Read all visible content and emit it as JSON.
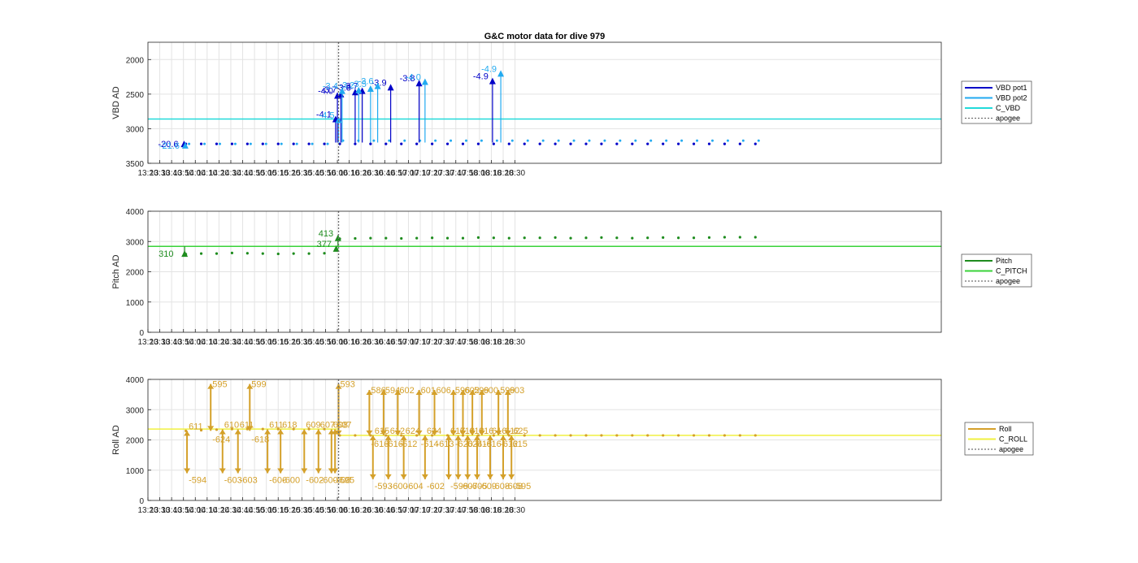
{
  "title": "G&C motor data for dive 979",
  "colors": {
    "vbd_pot1": "#0000c8",
    "vbd_pot2": "#22aaf0",
    "c_vbd": "#22dada",
    "pitch": "#1e8c1e",
    "c_pitch": "#39d339",
    "roll": "#d4a02a",
    "c_roll": "#f0f040",
    "apogee": "#707070",
    "grid": "#e3e3e3",
    "axis": "#262626"
  },
  "chart_data": [
    {
      "type": "line",
      "name": "vbd",
      "title": "G&C motor data for dive 979",
      "ylabel": "VBD AD",
      "ylim": [
        3500,
        1750
      ],
      "yreverse": true,
      "yticks": [
        2000,
        2500,
        3000,
        3500
      ],
      "xlim": [
        800,
        1470
      ],
      "xticks": [
        800,
        810,
        820,
        830,
        840,
        850,
        860,
        870,
        880,
        890,
        900,
        910,
        920,
        930,
        940,
        950,
        960,
        970,
        980,
        990,
        1000,
        1010,
        1020,
        1030,
        1040,
        1050,
        1060,
        1070,
        1080,
        1090,
        1100,
        1110
      ],
      "xticklabels": [
        "13:20",
        "13:30",
        "13:40",
        "13:50",
        "14:00",
        "14:10",
        "14:20",
        "14:30",
        "14:40",
        "14:50",
        "15:00",
        "15:10",
        "15:20",
        "15:30",
        "15:40",
        "15:50",
        "16:00",
        "16:10",
        "16:20",
        "16:30",
        "16:40",
        "16:50",
        "17:00",
        "17:10",
        "17:20",
        "17:30",
        "17:40",
        "17:50",
        "18:00",
        "18:10",
        "18:20",
        "18:30"
      ],
      "grid": true,
      "legend_position": "right",
      "legend": [
        "VBD pot1",
        "VBD pot2",
        "C_VBD",
        "apogee"
      ],
      "apogee_x": 961,
      "reference": {
        "name": "C_VBD",
        "value": 2860
      },
      "series": [
        {
          "name": "VBD pot1",
          "x": [
            832,
            845,
            858,
            871,
            884,
            897,
            910,
            923,
            936,
            949,
            962,
            975,
            988,
            1001,
            1014,
            1027,
            1040,
            1053,
            1066,
            1079,
            1092,
            1105,
            1118,
            1131,
            1144,
            1157,
            1170,
            1183,
            1196,
            1209,
            1222,
            1235,
            1248,
            1261,
            1274,
            1287,
            1300,
            1313
          ],
          "y": [
            3220,
            3220,
            3220,
            3220,
            3220,
            3220,
            3220,
            3220,
            3220,
            3220,
            3220,
            3220,
            3220,
            3220,
            3220,
            3220,
            3220,
            3220,
            3220,
            3220,
            3220,
            3220,
            3220,
            3220,
            3220,
            3220,
            3220,
            3220,
            3220,
            3220,
            3220,
            3220,
            3220,
            3220,
            3220,
            3220,
            3220,
            3220
          ]
        }
      ],
      "markers": [
        {
          "series": "VBD pot1",
          "points": [
            {
              "x": 830.5,
              "y": 3220,
              "label": "-20.6"
            },
            {
              "x": 958.5,
              "y": 2860,
              "label": "-4.1"
            },
            {
              "x": 960,
              "y": 2520,
              "label": "-4.0"
            },
            {
              "x": 963,
              "y": 2500,
              "label": "-3.7"
            },
            {
              "x": 975,
              "y": 2470,
              "label": "-3.8"
            },
            {
              "x": 981,
              "y": 2450,
              "label": "-3.7"
            },
            {
              "x": 1005,
              "y": 2400,
              "label": "-3.9"
            },
            {
              "x": 1029,
              "y": 2340,
              "label": "-3.8"
            },
            {
              "x": 1091,
              "y": 2310,
              "label": "-4.9"
            }
          ]
        },
        {
          "series": "VBD pot2",
          "points": [
            {
              "x": 831.5,
              "y": 3240,
              "label": "-21.6"
            },
            {
              "x": 961,
              "y": 2870,
              "label": "-4.5"
            },
            {
              "x": 964,
              "y": 2450,
              "label": "-3.4"
            },
            {
              "x": 978,
              "y": 2440,
              "label": "-3.2"
            },
            {
              "x": 988,
              "y": 2420,
              "label": "-3.5"
            },
            {
              "x": 994,
              "y": 2380,
              "label": "-3.6"
            },
            {
              "x": 1034,
              "y": 2320,
              "label": "-4.0"
            },
            {
              "x": 1098,
              "y": 2200,
              "label": "-4.9"
            }
          ]
        }
      ]
    },
    {
      "type": "line",
      "name": "pitch",
      "ylabel": "Pitch AD",
      "ylim": [
        0,
        4000
      ],
      "yticks": [
        0,
        1000,
        2000,
        3000,
        4000
      ],
      "xlim": [
        800,
        1470
      ],
      "xticks": [
        800,
        810,
        820,
        830,
        840,
        850,
        860,
        870,
        880,
        890,
        900,
        910,
        920,
        930,
        940,
        950,
        960,
        970,
        980,
        990,
        1000,
        1010,
        1020,
        1030,
        1040,
        1050,
        1060,
        1070,
        1080,
        1090,
        1100,
        1110
      ],
      "xticklabels": [
        "13:20",
        "13:30",
        "13:40",
        "13:50",
        "14:00",
        "14:10",
        "14:20",
        "14:30",
        "14:40",
        "14:50",
        "15:00",
        "15:10",
        "15:20",
        "15:30",
        "15:40",
        "15:50",
        "16:00",
        "16:10",
        "16:20",
        "16:30",
        "16:40",
        "16:50",
        "17:00",
        "17:10",
        "17:20",
        "17:30",
        "17:40",
        "17:50",
        "18:00",
        "18:10",
        "18:20",
        "18:30"
      ],
      "grid": true,
      "legend_position": "right",
      "legend": [
        "Pitch",
        "C_PITCH",
        "apogee"
      ],
      "apogee_x": 961,
      "reference": {
        "name": "C_PITCH",
        "value": 2840
      },
      "series": [
        {
          "name": "Pitch",
          "x": [
            832,
            845,
            858,
            871,
            884,
            897,
            910,
            923,
            936,
            949,
            962,
            975,
            988,
            1001,
            1014,
            1027,
            1040,
            1053,
            1066,
            1079,
            1092,
            1105,
            1118,
            1131,
            1144,
            1157,
            1170,
            1183,
            1196,
            1209,
            1222,
            1235,
            1248,
            1261,
            1274,
            1287,
            1300,
            1313
          ],
          "y": [
            2580,
            2600,
            2600,
            2620,
            2610,
            2600,
            2590,
            2600,
            2600,
            2610,
            3090,
            3100,
            3110,
            3110,
            3100,
            3110,
            3120,
            3110,
            3110,
            3130,
            3120,
            3110,
            3120,
            3120,
            3130,
            3110,
            3120,
            3130,
            3120,
            3110,
            3120,
            3130,
            3120,
            3120,
            3130,
            3140,
            3140,
            3140
          ]
        }
      ],
      "markers": [
        {
          "series": "Pitch",
          "points": [
            {
              "x": 831,
              "y": 2600,
              "label": "310"
            },
            {
              "x": 959,
              "y": 2770,
              "label": "377"
            },
            {
              "x": 960.5,
              "y": 3120,
              "label": "413"
            }
          ]
        }
      ]
    },
    {
      "type": "line",
      "name": "roll",
      "ylabel": "Roll AD",
      "ylim": [
        0,
        4000
      ],
      "yticks": [
        0,
        1000,
        2000,
        3000,
        4000
      ],
      "xlim": [
        800,
        1470
      ],
      "xticks": [
        800,
        810,
        820,
        830,
        840,
        850,
        860,
        870,
        880,
        890,
        900,
        910,
        920,
        930,
        940,
        950,
        960,
        970,
        980,
        990,
        1000,
        1010,
        1020,
        1030,
        1040,
        1050,
        1060,
        1070,
        1080,
        1090,
        1100,
        1110
      ],
      "xticklabels": [
        "13:20",
        "13:30",
        "13:40",
        "13:50",
        "14:00",
        "14:10",
        "14:20",
        "14:30",
        "14:40",
        "14:50",
        "15:00",
        "15:10",
        "15:20",
        "15:30",
        "15:40",
        "15:50",
        "16:00",
        "16:10",
        "16:20",
        "16:30",
        "16:40",
        "16:50",
        "17:00",
        "17:10",
        "17:20",
        "17:30",
        "17:40",
        "17:50",
        "18:00",
        "18:10",
        "18:20",
        "18:30"
      ],
      "grid": true,
      "legend_position": "right",
      "legend": [
        "Roll",
        "C_ROLL",
        "apogee"
      ],
      "apogee_x": 961,
      "reference": {
        "name": "C_ROLL",
        "value": 2150
      },
      "reference_before_apogee": 2360,
      "series": [
        {
          "name": "Roll",
          "x": [
            832,
            845,
            858,
            871,
            884,
            897,
            910,
            923,
            936,
            949,
            962,
            975,
            988,
            1001,
            1014,
            1027,
            1040,
            1053,
            1066,
            1079,
            1092,
            1105,
            1118,
            1131,
            1144,
            1157,
            1170,
            1183,
            1196,
            1209,
            1222,
            1235,
            1248,
            1261,
            1274,
            1287,
            1300,
            1313
          ],
          "y": [
            2300,
            2320,
            2340,
            2360,
            2360,
            2360,
            2360,
            2360,
            2360,
            2360,
            2150,
            2150,
            2150,
            2150,
            2150,
            2150,
            2150,
            2150,
            2150,
            2150,
            2150,
            2150,
            2150,
            2150,
            2150,
            2150,
            2150,
            2150,
            2150,
            2150,
            2150,
            2150,
            2150,
            2150,
            2150,
            2150,
            2150,
            2150
          ]
        }
      ],
      "moves": [
        {
          "x": 833,
          "from": 2300,
          "to": 900,
          "label_to": "-594",
          "label_from": "611"
        },
        {
          "x": 853,
          "from": 2300,
          "to": 3850,
          "label_to": "595",
          "label_from": "-624"
        },
        {
          "x": 863,
          "from": 2350,
          "to": 900,
          "label_to": "-603",
          "label_from": "610"
        },
        {
          "x": 876,
          "from": 2350,
          "to": 900,
          "label_to": "-603",
          "label_from": "611"
        },
        {
          "x": 886,
          "from": 2300,
          "to": 3850,
          "label_to": "599",
          "label_from": "-618"
        },
        {
          "x": 901,
          "from": 2350,
          "to": 900,
          "label_to": "-606",
          "label_from": "611"
        },
        {
          "x": 912,
          "from": 2350,
          "to": 900,
          "label_to": "-600",
          "label_from": "618"
        },
        {
          "x": 932,
          "from": 2350,
          "to": 900,
          "label_to": "-602",
          "label_from": "609"
        },
        {
          "x": 944,
          "from": 2350,
          "to": 900,
          "label_to": "-600",
          "label_from": "607"
        },
        {
          "x": 955,
          "from": 2350,
          "to": 900,
          "label_to": "-608",
          "label_from": "608"
        },
        {
          "x": 958,
          "from": 2350,
          "to": 900,
          "label_to": "-595",
          "label_from": "607"
        },
        {
          "x": 961,
          "from": 2150,
          "to": 3850,
          "label_to": "593",
          "label_from": ""
        },
        {
          "x": 987,
          "from": 2150,
          "to": 3650,
          "label_to": "586",
          "label_from": "-616"
        },
        {
          "x": 990,
          "from": 2150,
          "to": 700,
          "label_to": "-593",
          "label_from": "615"
        },
        {
          "x": 999,
          "from": 2150,
          "to": 3650,
          "label_to": "594",
          "label_from": "-616"
        },
        {
          "x": 1003,
          "from": 2150,
          "to": 700,
          "label_to": "-600",
          "label_from": "612"
        },
        {
          "x": 1011,
          "from": 2150,
          "to": 3650,
          "label_to": "602",
          "label_from": "-612"
        },
        {
          "x": 1016,
          "from": 2150,
          "to": 700,
          "label_to": "-604",
          "label_from": "624"
        },
        {
          "x": 1029,
          "from": 2150,
          "to": 3650,
          "label_to": "601",
          "label_from": "-614"
        },
        {
          "x": 1034,
          "from": 2150,
          "to": 700,
          "label_to": "-602",
          "label_from": "624"
        },
        {
          "x": 1042,
          "from": 2150,
          "to": 3650,
          "label_to": "606",
          "label_from": "-613"
        },
        {
          "x": 1054,
          "from": 2150,
          "to": 700,
          "label_to": "-599",
          "label_from": "617"
        },
        {
          "x": 1058,
          "from": 2150,
          "to": 3650,
          "label_to": "596",
          "label_from": "-620"
        },
        {
          "x": 1062,
          "from": 2150,
          "to": 700,
          "label_to": "-607",
          "label_from": "618"
        },
        {
          "x": 1066,
          "from": 2150,
          "to": 3650,
          "label_to": "602",
          "label_from": "-624"
        },
        {
          "x": 1070,
          "from": 2150,
          "to": 700,
          "label_to": "-605",
          "label_from": "618"
        },
        {
          "x": 1074,
          "from": 2150,
          "to": 3650,
          "label_to": "599",
          "label_from": "-618"
        },
        {
          "x": 1078,
          "from": 2150,
          "to": 700,
          "label_to": "-609",
          "label_from": "616"
        },
        {
          "x": 1082,
          "from": 2150,
          "to": 3650,
          "label_to": "600",
          "label_from": "-616"
        },
        {
          "x": 1089,
          "from": 2150,
          "to": 700,
          "label_to": "-608",
          "label_from": "616"
        },
        {
          "x": 1096,
          "from": 2150,
          "to": 3650,
          "label_to": "599",
          "label_from": "-612"
        },
        {
          "x": 1100,
          "from": 2150,
          "to": 700,
          "label_to": "-608",
          "label_from": "612"
        },
        {
          "x": 1104,
          "from": 2150,
          "to": 3650,
          "label_to": "603",
          "label_from": "-615"
        },
        {
          "x": 1107,
          "from": 2150,
          "to": 700,
          "label_to": "-595",
          "label_from": "625"
        }
      ]
    }
  ]
}
